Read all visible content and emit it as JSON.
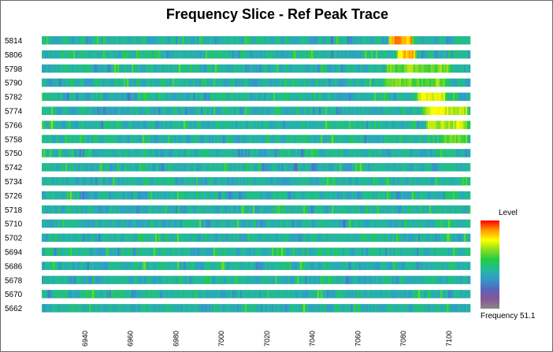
{
  "chart_data": {
    "type": "heatmap",
    "title": "Frequency Slice - Ref Peak Trace",
    "rows": [
      5814,
      5806,
      5798,
      5790,
      5782,
      5774,
      5766,
      5758,
      5750,
      5742,
      5734,
      5726,
      5718,
      5710,
      5702,
      5694,
      5686,
      5678,
      5670,
      5662
    ],
    "row_labels": [
      "5814",
      "5806",
      "5798",
      "5790",
      "5782",
      "5774",
      "5766",
      "5758",
      "5750",
      "5742",
      "5734",
      "5726",
      "5718",
      "5710",
      "5702",
      "5694",
      "5686",
      "5678",
      "5670",
      "5662"
    ],
    "x_ticks": [
      6940,
      6960,
      6980,
      7000,
      7020,
      7040,
      7060,
      7080,
      7100
    ],
    "x_tick_labels": [
      "6940",
      "6960",
      "6980",
      "7000",
      "7020",
      "7040",
      "7060",
      "7080",
      "7100"
    ],
    "xlim": [
      6921,
      7109
    ],
    "legend": {
      "title": "Level",
      "caption": "Frequency 51.1",
      "placement": "right",
      "colors": [
        "#ff0000",
        "#ff9900",
        "#ffff00",
        "#88dd22",
        "#22cc44",
        "#22bb99",
        "#3399cc",
        "#5566bb",
        "#885599",
        "#888888"
      ]
    },
    "hotspots": [
      {
        "row": 5814,
        "x_start": 7073,
        "x_end": 7084,
        "level": 0.97
      },
      {
        "row": 5806,
        "x_start": 7077,
        "x_end": 7085,
        "level": 0.92
      },
      {
        "row": 5798,
        "x_start": 7072,
        "x_end": 7100,
        "level": 0.72
      },
      {
        "row": 5790,
        "x_start": 7071,
        "x_end": 7098,
        "level": 0.7
      },
      {
        "row": 5782,
        "x_start": 7086,
        "x_end": 7098,
        "level": 0.85
      },
      {
        "row": 5774,
        "x_start": 7088,
        "x_end": 7108,
        "level": 0.8
      },
      {
        "row": 5766,
        "x_start": 7090,
        "x_end": 7108,
        "level": 0.8
      },
      {
        "row": 5758,
        "x_start": 7096,
        "x_end": 7108,
        "level": 0.7
      }
    ]
  }
}
